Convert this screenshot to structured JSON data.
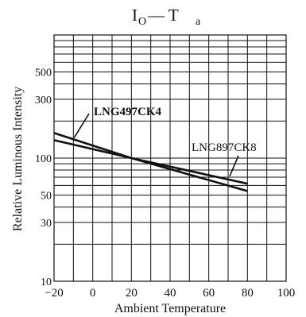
{
  "chart_data": {
    "type": "line",
    "title_main": "I",
    "title_sub": "O",
    "title_rest": "— T",
    "title_rest_sub": "a",
    "xlabel": "Ambient Temperature",
    "ylabel": "Relative Luminous Intensity",
    "x_scale": "linear",
    "y_scale": "log",
    "xlim": [
      -20,
      100
    ],
    "ylim": [
      10,
      1000
    ],
    "x_ticks": [
      -20,
      0,
      20,
      40,
      60,
      80,
      100
    ],
    "x_tick_labels": [
      "−20",
      "0",
      "20",
      "40",
      "60",
      "80",
      "100"
    ],
    "x_grid": [
      -20,
      -10,
      0,
      10,
      20,
      30,
      40,
      50,
      60,
      70,
      80,
      90,
      100
    ],
    "y_ticks": [
      10,
      30,
      50,
      100,
      300,
      500
    ],
    "y_tick_labels": [
      "10",
      "30",
      "50",
      "100",
      "300",
      "500"
    ],
    "y_grid": [
      20,
      30,
      40,
      50,
      60,
      70,
      80,
      90,
      100,
      200,
      300,
      400,
      500,
      600,
      700,
      800,
      900
    ],
    "grid": true,
    "series": [
      {
        "name": "LNG497CK4",
        "x": [
          -20,
          20,
          80
        ],
        "y": [
          160,
          100,
          54
        ]
      },
      {
        "name": "LNG897CK8",
        "x": [
          -20,
          20,
          80
        ],
        "y": [
          140,
          100,
          62
        ]
      }
    ]
  }
}
